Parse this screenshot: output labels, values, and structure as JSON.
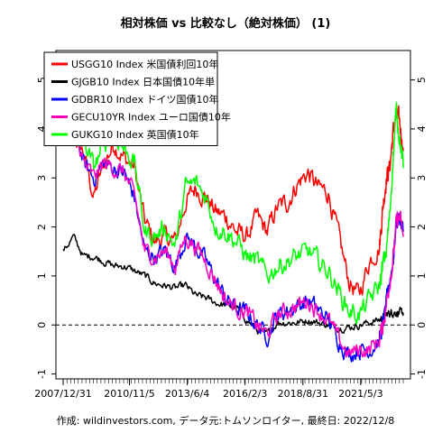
{
  "caption": "作成: wildinvestors.com, データ元:トムソンロイター, 最終日: 2022/12/8",
  "chart_data": {
    "type": "line",
    "title": "相対株価 vs 比較なし（絶対株価） (1)",
    "xlabel": "",
    "ylabel": "",
    "x_tick_labels": [
      "2007/12/31",
      "2010/11/5",
      "2013/6/4",
      "2016/2/3",
      "2018/8/31",
      "2021/5/3"
    ],
    "x_tick_positions": [
      0,
      0.195,
      0.365,
      0.535,
      0.705,
      0.875
    ],
    "ylim": [
      -1.1,
      5.6
    ],
    "y_ticks": [
      -1,
      0,
      1,
      2,
      3,
      4,
      5
    ],
    "reference_line": 0,
    "grid": false,
    "legend_position": "top-left",
    "x": [
      0,
      0.03,
      0.06,
      0.09,
      0.12,
      0.15,
      0.18,
      0.21,
      0.24,
      0.27,
      0.3,
      0.33,
      0.36,
      0.39,
      0.42,
      0.45,
      0.48,
      0.51,
      0.54,
      0.57,
      0.6,
      0.63,
      0.66,
      0.69,
      0.72,
      0.75,
      0.78,
      0.81,
      0.84,
      0.87,
      0.9,
      0.93,
      0.94,
      0.95,
      0.96,
      0.97,
      0.98,
      0.99,
      1.0
    ],
    "series": [
      {
        "name": "USGG10 Index 米国債利回10年",
        "color": "#ff0000",
        "values": [
          4.0,
          3.9,
          3.5,
          2.6,
          3.3,
          3.7,
          3.4,
          3.2,
          2.1,
          1.7,
          1.8,
          1.7,
          2.5,
          2.8,
          2.6,
          2.3,
          2.2,
          1.9,
          1.8,
          2.2,
          1.9,
          2.4,
          2.5,
          2.9,
          3.1,
          2.8,
          2.7,
          1.8,
          0.9,
          0.6,
          1.3,
          1.6,
          2.4,
          3.0,
          3.2,
          3.9,
          4.3,
          4.1,
          3.6
        ]
      },
      {
        "name": "GJGB10 Index 日本国債10年単",
        "color": "#000000",
        "values": [
          1.5,
          1.8,
          1.4,
          1.4,
          1.3,
          1.2,
          1.2,
          1.1,
          1.0,
          0.85,
          0.8,
          0.75,
          0.8,
          0.6,
          0.55,
          0.45,
          0.4,
          0.35,
          0.1,
          -0.1,
          -0.2,
          0.05,
          0.05,
          0.05,
          0.1,
          0.05,
          0.0,
          -0.05,
          -0.05,
          0.0,
          0.05,
          0.1,
          0.15,
          0.2,
          0.25,
          0.25,
          0.25,
          0.25,
          0.25
        ]
      },
      {
        "name": "GDBR10 Index ドイツ国債10年",
        "color": "#0000ff",
        "values": [
          4.3,
          4.2,
          3.3,
          3.0,
          3.3,
          3.2,
          3.1,
          2.6,
          1.5,
          1.4,
          1.5,
          1.2,
          1.8,
          1.6,
          1.3,
          0.9,
          0.5,
          0.35,
          0.25,
          0.0,
          -0.2,
          0.2,
          0.3,
          0.4,
          0.5,
          0.3,
          0.1,
          -0.3,
          -0.6,
          -0.5,
          -0.5,
          -0.3,
          0.0,
          0.4,
          0.9,
          1.3,
          2.1,
          2.2,
          1.9
        ]
      },
      {
        "name": "GECU10YR Index ユーロ国債10年",
        "color": "#ff00bb",
        "values": [
          4.2,
          4.2,
          3.3,
          3.0,
          3.3,
          3.2,
          3.1,
          2.6,
          1.5,
          1.4,
          1.5,
          1.2,
          1.8,
          1.6,
          1.3,
          0.9,
          0.5,
          0.35,
          0.25,
          0.0,
          -0.2,
          0.2,
          0.3,
          0.4,
          0.5,
          0.3,
          0.1,
          -0.3,
          -0.6,
          -0.5,
          -0.5,
          -0.3,
          0.0,
          0.4,
          0.9,
          1.3,
          2.1,
          2.2,
          1.8
        ]
      },
      {
        "name": "GUKG10 Index 英国債10年",
        "color": "#00ff00",
        "values": [
          4.6,
          4.5,
          3.8,
          3.2,
          3.7,
          3.9,
          3.6,
          3.3,
          1.9,
          1.8,
          2.0,
          1.6,
          2.8,
          2.9,
          2.6,
          2.0,
          1.9,
          1.7,
          1.4,
          1.3,
          1.0,
          1.2,
          1.3,
          1.4,
          1.5,
          1.3,
          1.1,
          0.7,
          0.3,
          0.2,
          0.5,
          0.8,
          1.2,
          1.5,
          2.2,
          3.4,
          4.4,
          3.8,
          3.2
        ]
      }
    ]
  }
}
